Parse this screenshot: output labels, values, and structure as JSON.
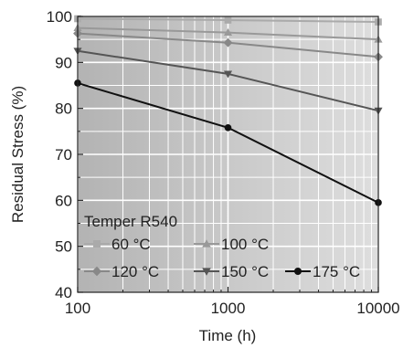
{
  "chart_data": {
    "type": "line",
    "xlabel": "Time (h)",
    "ylabel": "Residual Stress (%)",
    "xscale": "log",
    "xlim": [
      100,
      10000
    ],
    "ylim": [
      40,
      100
    ],
    "xticks": [
      100,
      1000,
      10000
    ],
    "xtick_labels": [
      "100",
      "1000",
      "10000"
    ],
    "yticks": [
      40,
      50,
      60,
      70,
      80,
      90,
      100
    ],
    "ytick_labels": [
      "40",
      "50",
      "60",
      "70",
      "80",
      "90",
      "100"
    ],
    "grid": true,
    "legend_title": "Temper R540",
    "legend_position": "bottom-left",
    "x": [
      100,
      1000,
      10000
    ],
    "series": [
      {
        "name": "60 °C",
        "values": [
          99.5,
          99.2,
          98.8
        ],
        "color": "#aaaaaa",
        "marker": "square"
      },
      {
        "name": "100 °C",
        "values": [
          97.5,
          96.5,
          95.0
        ],
        "color": "#999999",
        "marker": "triangle-up"
      },
      {
        "name": "120 °C",
        "values": [
          96.3,
          94.3,
          91.2
        ],
        "color": "#888888",
        "marker": "diamond"
      },
      {
        "name": "150 °C",
        "values": [
          92.5,
          87.5,
          79.5
        ],
        "color": "#555555",
        "marker": "triangle-down"
      },
      {
        "name": "175 °C",
        "values": [
          85.5,
          75.8,
          59.5
        ],
        "color": "#111111",
        "marker": "circle"
      }
    ],
    "plot_background": "#c8c8c8"
  }
}
